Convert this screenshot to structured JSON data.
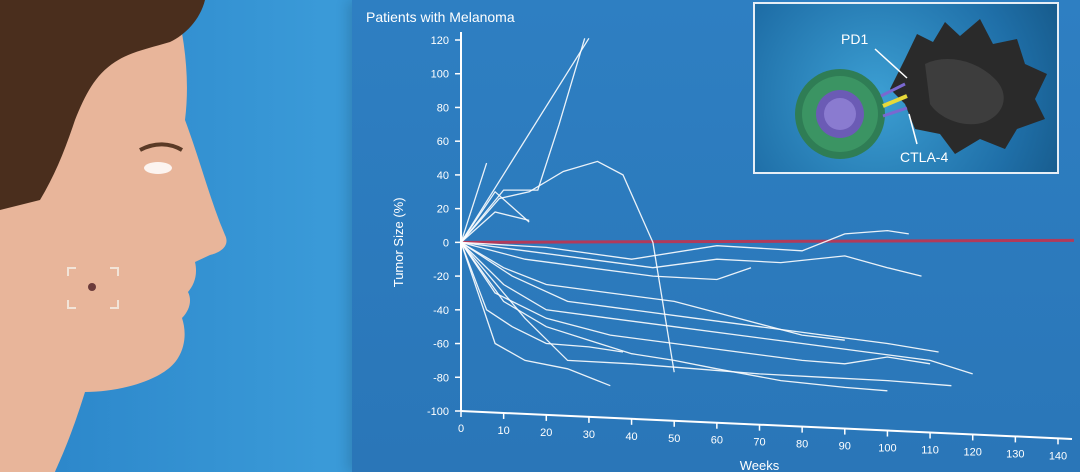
{
  "inset": {
    "label_pd1": "PD1",
    "label_ctla4": "CTLA-4"
  },
  "colors": {
    "panel_bg": "#2e7fc2",
    "line": "#ffffff",
    "reference_line": "#b23a5a"
  },
  "chart_data": {
    "type": "line",
    "title": "Patients with Melanoma",
    "xlabel": "Weeks",
    "ylabel": "Tumor Size (%)",
    "xlim": [
      0,
      140
    ],
    "ylim": [
      -100,
      120
    ],
    "x_ticks": [
      "0",
      "10",
      "20",
      "30",
      "40",
      "50",
      "60",
      "70",
      "80",
      "90",
      "100",
      "110",
      "120",
      "130",
      "140"
    ],
    "y_ticks": [
      "120",
      "100",
      "80",
      "60",
      "40",
      "20",
      "0",
      "-20",
      "-40",
      "-60",
      "-80",
      "-100"
    ],
    "reference_line": {
      "y": 0
    },
    "series": [
      {
        "x": [
          0,
          30
        ],
        "y": [
          0,
          121
        ]
      },
      {
        "x": [
          0,
          6
        ],
        "y": [
          0,
          47
        ]
      },
      {
        "x": [
          0,
          8,
          16
        ],
        "y": [
          0,
          30,
          12
        ]
      },
      {
        "x": [
          0,
          10,
          18,
          23,
          29
        ],
        "y": [
          0,
          31,
          31,
          70,
          121
        ]
      },
      {
        "x": [
          0,
          9,
          16,
          24,
          32,
          38,
          45,
          50
        ],
        "y": [
          0,
          26,
          30,
          42,
          48,
          40,
          0,
          -77
        ]
      },
      {
        "x": [
          0,
          8,
          16
        ],
        "y": [
          0,
          18,
          13
        ]
      },
      {
        "x": [
          0,
          20,
          40,
          60,
          80,
          90,
          100,
          105
        ],
        "y": [
          0,
          -3,
          -10,
          -2,
          -5,
          5,
          7,
          5
        ]
      },
      {
        "x": [
          0,
          15,
          30,
          45,
          60,
          75,
          90,
          100,
          108
        ],
        "y": [
          0,
          -5,
          -10,
          -15,
          -10,
          -12,
          -8,
          -15,
          -20
        ]
      },
      {
        "x": [
          0,
          15,
          30,
          45,
          60,
          68
        ],
        "y": [
          0,
          -10,
          -15,
          -20,
          -22,
          -15
        ]
      },
      {
        "x": [
          0,
          10,
          20,
          35,
          50,
          65,
          80,
          90
        ],
        "y": [
          0,
          -15,
          -25,
          -30,
          -35,
          -45,
          -55,
          -58
        ]
      },
      {
        "x": [
          0,
          12,
          25,
          40,
          55,
          70,
          85,
          100,
          112
        ],
        "y": [
          0,
          -20,
          -35,
          -40,
          -45,
          -50,
          -55,
          -60,
          -65
        ]
      },
      {
        "x": [
          0,
          10,
          20,
          35,
          50,
          65,
          80,
          95,
          110,
          120
        ],
        "y": [
          0,
          -25,
          -40,
          -45,
          -50,
          -55,
          -60,
          -65,
          -70,
          -78
        ]
      },
      {
        "x": [
          0,
          8,
          20,
          35,
          50,
          65,
          80,
          90,
          100,
          110
        ],
        "y": [
          0,
          -30,
          -45,
          -55,
          -60,
          -65,
          -70,
          -72,
          -68,
          -72
        ]
      },
      {
        "x": [
          0,
          6,
          12,
          20,
          30,
          38
        ],
        "y": [
          0,
          -40,
          -50,
          -60,
          -62,
          -65
        ]
      },
      {
        "x": [
          0,
          8,
          15,
          25,
          35
        ],
        "y": [
          0,
          -60,
          -70,
          -75,
          -85
        ]
      },
      {
        "x": [
          0,
          10,
          20,
          30,
          40,
          50,
          60,
          75,
          90,
          100
        ],
        "y": [
          0,
          -35,
          -50,
          -58,
          -66,
          -70,
          -75,
          -82,
          -86,
          -88
        ]
      },
      {
        "x": [
          0,
          15,
          25,
          40,
          55,
          70,
          85,
          100,
          115
        ],
        "y": [
          0,
          -45,
          -70,
          -72,
          -75,
          -78,
          -80,
          -82,
          -85
        ]
      }
    ]
  }
}
